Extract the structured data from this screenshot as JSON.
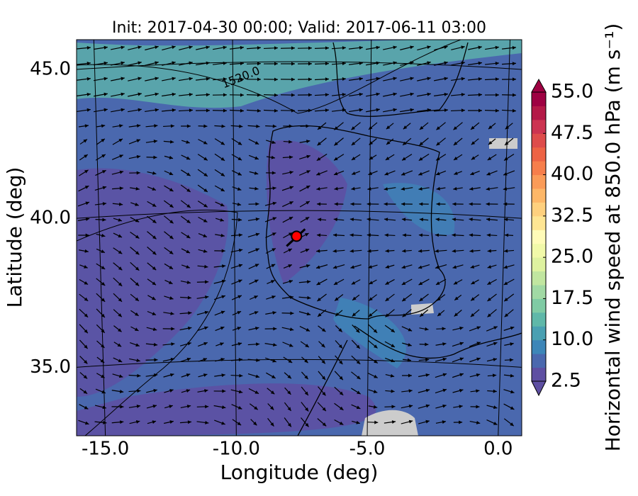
{
  "chart_data": {
    "type": "wind-map",
    "title": "Init: 2017-04-30 00:00; Valid: 2017-06-11 03:00",
    "xlabel": "Longitude (deg)",
    "ylabel": "Latitude (deg)",
    "xlim": [
      -16.1,
      0.9
    ],
    "ylim": [
      32.7,
      46.0
    ],
    "xticks": [
      {
        "value": -15,
        "label": "-15.0"
      },
      {
        "value": -10,
        "label": "-10.0"
      },
      {
        "value": -5,
        "label": "-5.0"
      },
      {
        "value": 0,
        "label": "0.0"
      }
    ],
    "yticks": [
      {
        "value": 35,
        "label": "35.0"
      },
      {
        "value": 40,
        "label": "40.0"
      },
      {
        "value": 45,
        "label": "45.0"
      }
    ],
    "contour_label": "1520.0",
    "marker": {
      "x": -7.7,
      "y": 39.4,
      "color": "#ff0000"
    },
    "colorbar": {
      "label": "Horizontal wind speed at 850.0 hPa (m s⁻¹)",
      "lim": [
        2.5,
        55
      ],
      "ticks": [
        2.5,
        {
          "value": 10,
          "label": "10.0"
        },
        17.5,
        {
          "value": 25,
          "label": "25.0"
        },
        32.5,
        {
          "value": 40,
          "label": "40.0"
        },
        47.5,
        {
          "value": 55,
          "label": "55.0"
        }
      ],
      "colors": [
        "#5e4fa2",
        "#4a68ae",
        "#3d86b8",
        "#49a0b2",
        "#5fb8a9",
        "#7fcba4",
        "#a1d9a4",
        "#c1e6a0",
        "#def2a0",
        "#f1f9a9",
        "#fffbb8",
        "#fee593",
        "#fed07e",
        "#fdb768",
        "#fa9b58",
        "#f67e4b",
        "#ed6344",
        "#de4c4b",
        "#cc3451",
        "#b41947",
        "#9e0142"
      ]
    }
  }
}
